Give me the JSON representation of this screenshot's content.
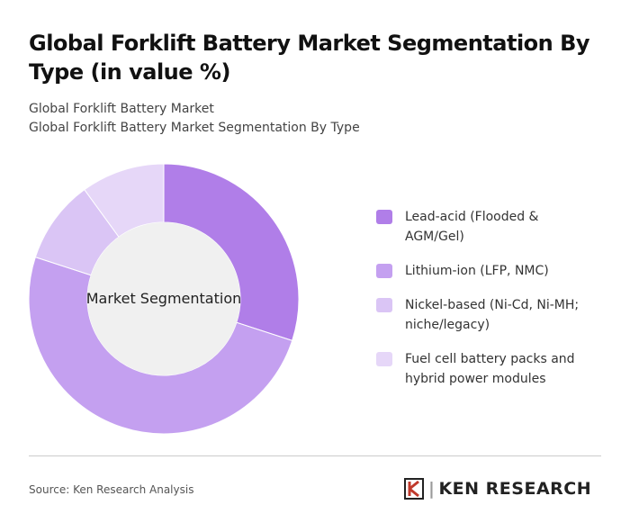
{
  "chart_data": {
    "type": "donut",
    "title": "Global Forklift Battery Market Segmentation By Type (in value %)",
    "subtitle": [
      "Global Forklift Battery Market",
      "Global Forklift Battery Market Segmentation By Type"
    ],
    "center_label": "Market Segmentation",
    "categories": [
      "Lead-acid (Flooded & AGM/Gel)",
      "Lithium-ion (LFP, NMC)",
      "Nickel-based (Ni-Cd, Ni-MH; niche/legacy)",
      "Fuel cell battery packs and hybrid power modules"
    ],
    "values": [
      30,
      50,
      10,
      10
    ],
    "colors": [
      "#b07ee8",
      "#c4a0f0",
      "#dac5f5",
      "#e6d7f8"
    ],
    "source": "Source: Ken Research Analysis",
    "brand": "KEN RESEARCH"
  }
}
